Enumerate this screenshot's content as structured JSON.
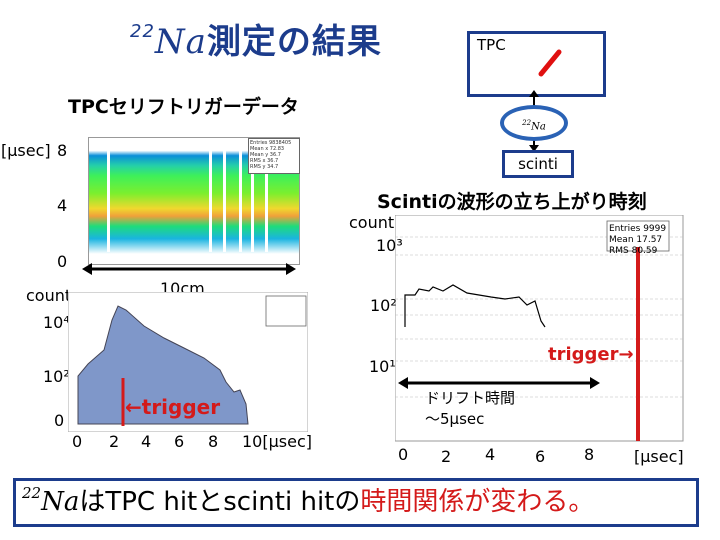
{
  "title": {
    "isotope_mass": "22",
    "isotope": "Na",
    "text": "測定の結果"
  },
  "subtitle": "TPCセリフトリガーデータ",
  "detector": {
    "tpc_label": "TPC",
    "source_mass": "22",
    "source": "Na",
    "scinti_label": "scinti"
  },
  "heatmap": {
    "ylabel": "[μsec]",
    "y_ticks": [
      "8",
      "4",
      "0"
    ],
    "scale_label": "10cm",
    "stat_lines": [
      "Entries 9838405",
      "Mean x 72.83",
      "Mean y 36.7",
      "RMS x 36.7",
      "RMS y 34.7"
    ]
  },
  "projection": {
    "ylabel": "count",
    "y_ticks": [
      "10⁴",
      "10²",
      "0"
    ],
    "x_ticks": [
      "0",
      "2",
      "4",
      "6",
      "8",
      "10[μsec]"
    ],
    "trigger_label": "←trigger"
  },
  "scinti_plot": {
    "title": "Scintiの波形の立ち上がり時刻",
    "ylabel": "count",
    "y_ticks": [
      "10³",
      "10²",
      "10¹"
    ],
    "x_ticks": [
      "0",
      "2",
      "4",
      "6",
      "8",
      "[μsec]"
    ],
    "stats": [
      "Entries 9999",
      "Mean 17.57",
      "RMS 80.59"
    ],
    "trigger_label": "trigger→",
    "drift_line1": "ドリフト時間",
    "drift_line2": "～5μsec"
  },
  "conclusion": {
    "isotope_mass": "22",
    "isotope": "Na",
    "part1": "はTPC hitとscinti hitの",
    "part2": "時間関係が変わる。"
  },
  "colors": {
    "title": "#1c3c8c",
    "highlight": "#d41a1a",
    "histogram": "#7f97c9",
    "frame": "#1c3c8c"
  }
}
